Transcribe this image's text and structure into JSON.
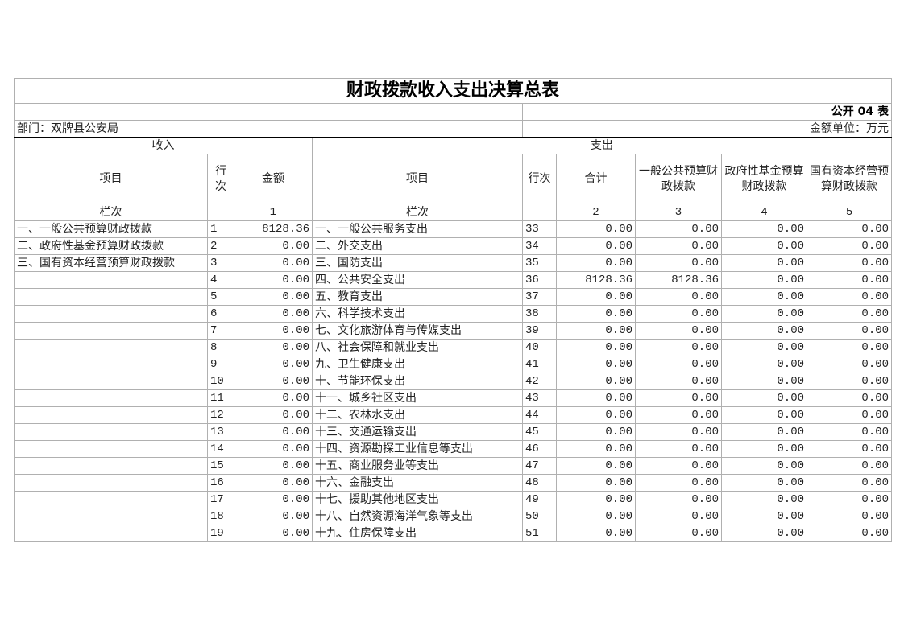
{
  "title": "财政拨款收入支出决算总表",
  "form_no": "公开 04 表",
  "department": "部门：双牌县公安局",
  "unit": "金额单位：万元",
  "income_header": "收入",
  "expense_header": "支出",
  "columns": {
    "income_item": "项目",
    "income_line": "行次",
    "income_amount": "金额",
    "expense_item": "项目",
    "expense_line": "行次",
    "total": "合计",
    "general": "一般公共预算财政拨款",
    "fund": "政府性基金预算财政拨款",
    "state": "国有资本经营预算财政拨款"
  },
  "col_index": {
    "income_label": "栏次",
    "c1": "1",
    "expense_label": "栏次",
    "c2": "2",
    "c3": "3",
    "c4": "4",
    "c5": "5"
  },
  "rows": [
    {
      "in_item": "一、一般公共预算财政拨款",
      "in_line": "1",
      "in_amt": "8128.36",
      "ex_item": "一、一般公共服务支出",
      "ex_line": "33",
      "total": "0.00",
      "general": "0.00",
      "fund": "0.00",
      "state": "0.00"
    },
    {
      "in_item": "二、政府性基金预算财政拨款",
      "in_line": "2",
      "in_amt": "0.00",
      "ex_item": "二、外交支出",
      "ex_line": "34",
      "total": "0.00",
      "general": "0.00",
      "fund": "0.00",
      "state": "0.00"
    },
    {
      "in_item": "三、国有资本经营预算财政拨款",
      "in_line": "3",
      "in_amt": "0.00",
      "ex_item": "三、国防支出",
      "ex_line": "35",
      "total": "0.00",
      "general": "0.00",
      "fund": "0.00",
      "state": "0.00"
    },
    {
      "in_item": "",
      "in_line": "4",
      "in_amt": "0.00",
      "ex_item": "四、公共安全支出",
      "ex_line": "36",
      "total": "8128.36",
      "general": "8128.36",
      "fund": "0.00",
      "state": "0.00"
    },
    {
      "in_item": "",
      "in_line": "5",
      "in_amt": "0.00",
      "ex_item": "五、教育支出",
      "ex_line": "37",
      "total": "0.00",
      "general": "0.00",
      "fund": "0.00",
      "state": "0.00"
    },
    {
      "in_item": "",
      "in_line": "6",
      "in_amt": "0.00",
      "ex_item": "六、科学技术支出",
      "ex_line": "38",
      "total": "0.00",
      "general": "0.00",
      "fund": "0.00",
      "state": "0.00"
    },
    {
      "in_item": "",
      "in_line": "7",
      "in_amt": "0.00",
      "ex_item": "七、文化旅游体育与传媒支出",
      "ex_line": "39",
      "total": "0.00",
      "general": "0.00",
      "fund": "0.00",
      "state": "0.00"
    },
    {
      "in_item": "",
      "in_line": "8",
      "in_amt": "0.00",
      "ex_item": "八、社会保障和就业支出",
      "ex_line": "40",
      "total": "0.00",
      "general": "0.00",
      "fund": "0.00",
      "state": "0.00"
    },
    {
      "in_item": "",
      "in_line": "9",
      "in_amt": "0.00",
      "ex_item": "九、卫生健康支出",
      "ex_line": "41",
      "total": "0.00",
      "general": "0.00",
      "fund": "0.00",
      "state": "0.00"
    },
    {
      "in_item": "",
      "in_line": "10",
      "in_amt": "0.00",
      "ex_item": "十、节能环保支出",
      "ex_line": "42",
      "total": "0.00",
      "general": "0.00",
      "fund": "0.00",
      "state": "0.00"
    },
    {
      "in_item": "",
      "in_line": "11",
      "in_amt": "0.00",
      "ex_item": "十一、城乡社区支出",
      "ex_line": "43",
      "total": "0.00",
      "general": "0.00",
      "fund": "0.00",
      "state": "0.00"
    },
    {
      "in_item": "",
      "in_line": "12",
      "in_amt": "0.00",
      "ex_item": "十二、农林水支出",
      "ex_line": "44",
      "total": "0.00",
      "general": "0.00",
      "fund": "0.00",
      "state": "0.00"
    },
    {
      "in_item": "",
      "in_line": "13",
      "in_amt": "0.00",
      "ex_item": "十三、交通运输支出",
      "ex_line": "45",
      "total": "0.00",
      "general": "0.00",
      "fund": "0.00",
      "state": "0.00"
    },
    {
      "in_item": "",
      "in_line": "14",
      "in_amt": "0.00",
      "ex_item": "十四、资源勘探工业信息等支出",
      "ex_line": "46",
      "total": "0.00",
      "general": "0.00",
      "fund": "0.00",
      "state": "0.00"
    },
    {
      "in_item": "",
      "in_line": "15",
      "in_amt": "0.00",
      "ex_item": "十五、商业服务业等支出",
      "ex_line": "47",
      "total": "0.00",
      "general": "0.00",
      "fund": "0.00",
      "state": "0.00"
    },
    {
      "in_item": "",
      "in_line": "16",
      "in_amt": "0.00",
      "ex_item": "十六、金融支出",
      "ex_line": "48",
      "total": "0.00",
      "general": "0.00",
      "fund": "0.00",
      "state": "0.00"
    },
    {
      "in_item": "",
      "in_line": "17",
      "in_amt": "0.00",
      "ex_item": "十七、援助其他地区支出",
      "ex_line": "49",
      "total": "0.00",
      "general": "0.00",
      "fund": "0.00",
      "state": "0.00"
    },
    {
      "in_item": "",
      "in_line": "18",
      "in_amt": "0.00",
      "ex_item": "十八、自然资源海洋气象等支出",
      "ex_line": "50",
      "total": "0.00",
      "general": "0.00",
      "fund": "0.00",
      "state": "0.00"
    },
    {
      "in_item": "",
      "in_line": "19",
      "in_amt": "0.00",
      "ex_item": "十九、住房保障支出",
      "ex_line": "51",
      "total": "0.00",
      "general": "0.00",
      "fund": "0.00",
      "state": "0.00"
    }
  ]
}
